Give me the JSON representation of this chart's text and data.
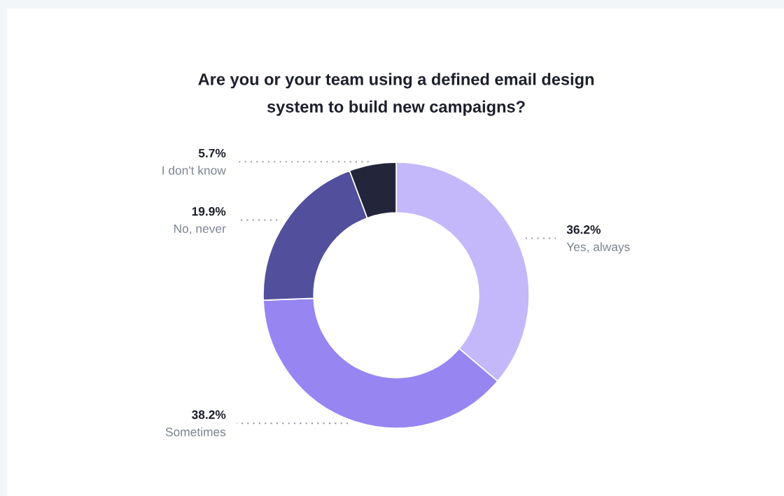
{
  "chart_data": {
    "type": "donut",
    "title": "Are you or your team using a defined email design\nsystem to build new campaigns?",
    "categories": [
      "Yes, always",
      "Sometimes",
      "No, never",
      "I don't know"
    ],
    "values": [
      36.2,
      38.2,
      19.9,
      5.7
    ],
    "colors": [
      "#c4b8fa",
      "#9785f2",
      "#524f9c",
      "#23253a"
    ],
    "value_labels": [
      "36.2%",
      "38.2%",
      "19.9%",
      "5.7%"
    ]
  }
}
